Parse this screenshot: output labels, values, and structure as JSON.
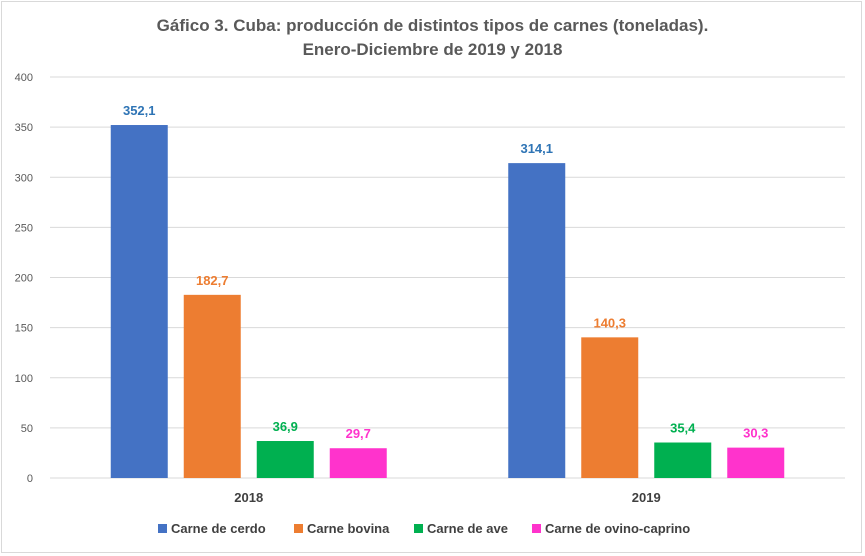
{
  "chart_data": {
    "type": "bar",
    "title": "Gáfico 3. Cuba: producción de distintos tipos de carnes (toneladas).",
    "subtitle": "Enero-Diciembre de 2019 y 2018",
    "categories": [
      "2018",
      "2019"
    ],
    "series": [
      {
        "name": "Carne de cerdo",
        "values": [
          352.1,
          314.1
        ],
        "labels": [
          "352,1",
          "314,1"
        ],
        "color": "#4472c4",
        "label_color": "#2e74b5"
      },
      {
        "name": "Carne bovina",
        "values": [
          182.7,
          140.3
        ],
        "labels": [
          "182,7",
          "140,3"
        ],
        "color": "#ed7d31",
        "label_color": "#ed7d31"
      },
      {
        "name": "Carne de ave",
        "values": [
          36.9,
          35.4
        ],
        "labels": [
          "36,9",
          "35,4"
        ],
        "color": "#00b050",
        "label_color": "#00b050"
      },
      {
        "name": "Carne de ovino-caprino",
        "values": [
          29.7,
          30.3
        ],
        "labels": [
          "29,7",
          "30,3"
        ],
        "color": "#ff33cc",
        "label_color": "#ff33cc"
      }
    ],
    "ylim": [
      0,
      400
    ],
    "yticks": [
      0,
      50,
      100,
      150,
      200,
      250,
      300,
      350,
      400
    ],
    "grid": true,
    "legend": "bottom"
  }
}
